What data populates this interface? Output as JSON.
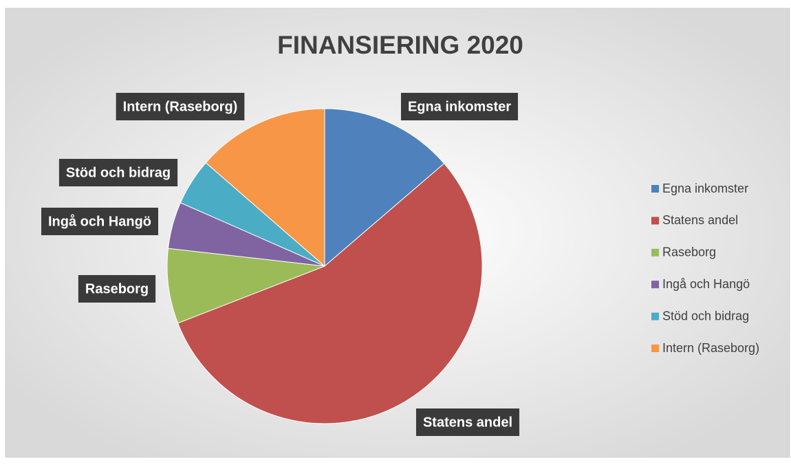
{
  "chart_data": {
    "type": "pie",
    "title": "FINANSIERING 2020",
    "categories": [
      "Egna inkomster",
      "Statens andel",
      "Raseborg",
      "Ingå och Hangö",
      "Stöd och bidrag",
      "Intern (Raseborg)"
    ],
    "values": [
      13.7,
      55.4,
      7.7,
      4.8,
      4.8,
      13.6
    ],
    "colors": [
      "#4f81bd",
      "#c0504d",
      "#9bbb59",
      "#8064a2",
      "#4bacc6",
      "#f79646"
    ],
    "legend": "right"
  }
}
